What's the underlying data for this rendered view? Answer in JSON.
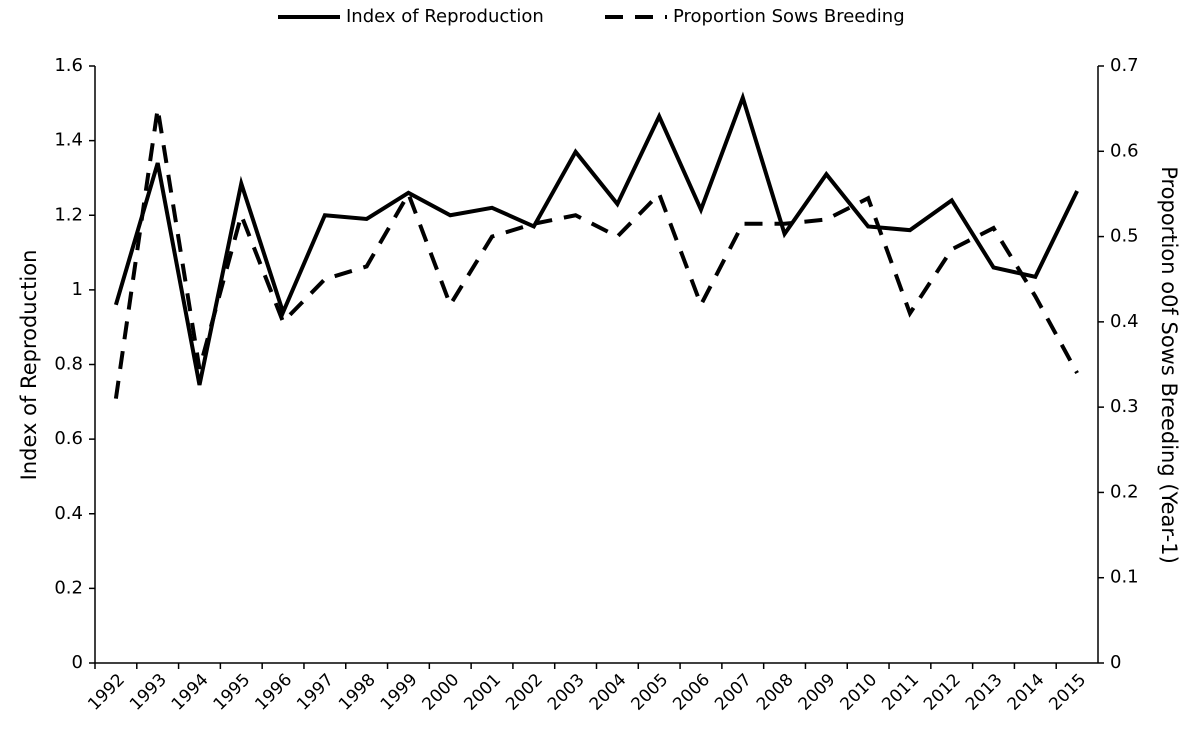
{
  "chart_data": {
    "type": "line",
    "categories": [
      "1992",
      "1993",
      "1994",
      "1995",
      "1996",
      "1997",
      "1998",
      "1999",
      "2000",
      "2001",
      "2002",
      "2003",
      "2004",
      "2005",
      "2006",
      "2007",
      "2008",
      "2009",
      "2010",
      "2011",
      "2012",
      "2013",
      "2014",
      "2015"
    ],
    "series": [
      {
        "name": "Index of Reproduction",
        "color": "#000000",
        "dash": false,
        "values": [
          0.96,
          1.34,
          0.745,
          1.285,
          0.94,
          1.2,
          1.19,
          1.26,
          1.2,
          1.22,
          1.17,
          1.37,
          1.23,
          1.465,
          1.215,
          1.515,
          1.15,
          1.31,
          1.17,
          1.16,
          1.24,
          1.06,
          1.035,
          1.265
        ]
      },
      {
        "name": "Proportion Sows Breeding",
        "color": "#000000",
        "dash": true,
        "axis": "y2",
        "values": [
          0.31,
          0.65,
          0.345,
          0.525,
          0.4,
          0.45,
          0.465,
          0.55,
          0.42,
          0.5,
          0.515,
          0.525,
          0.5,
          0.55,
          0.42,
          0.515,
          0.515,
          0.52,
          0.545,
          0.41,
          0.485,
          0.51,
          0.43,
          0.34
        ]
      }
    ],
    "ylabel": "Index of Reproduction",
    "y2label": "Proportion o0f Sows Breeding (Year-1)",
    "ylim": [
      0,
      1.6
    ],
    "yticks": [
      0,
      0.2,
      0.4,
      0.6,
      0.8,
      1,
      1.2,
      1.4,
      1.6
    ],
    "y2lim": [
      0,
      0.7
    ],
    "y2ticks": [
      0,
      0.1,
      0.2,
      0.3,
      0.4,
      0.5,
      0.6,
      0.7
    ],
    "grid": false,
    "legend": "top"
  }
}
